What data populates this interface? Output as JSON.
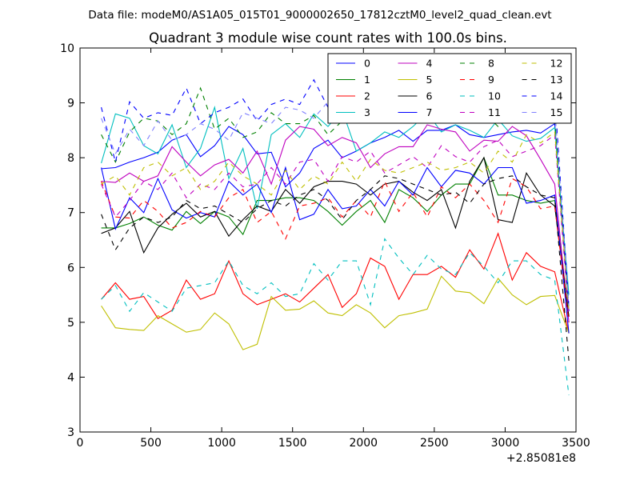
{
  "figure": {
    "suptitle": "Data file: modeM0/AS1A05_015T01_9000002650_17812cztM0_level2_quad_clean.evt"
  },
  "chart_data": {
    "type": "line",
    "title": "Quadrant 3 module wise count rates with 100.0s bins.",
    "xlabel": "",
    "ylabel": "",
    "x_offset_label": "+2.85081e8",
    "xlim": [
      0,
      3500
    ],
    "ylim": [
      3,
      10
    ],
    "xticks": [
      "0",
      "500",
      "1000",
      "1500",
      "2000",
      "2500",
      "3000",
      "3500"
    ],
    "yticks": [
      "3",
      "4",
      "5",
      "6",
      "7",
      "8",
      "9",
      "10"
    ],
    "grid": false,
    "legend_position": "top-right",
    "legend_columns": 4,
    "x": [
      150,
      250,
      350,
      450,
      550,
      650,
      750,
      850,
      950,
      1050,
      1150,
      1250,
      1350,
      1450,
      1550,
      1650,
      1750,
      1850,
      1950,
      2050,
      2150,
      2250,
      2350,
      2450,
      2550,
      2650,
      2750,
      2850,
      2950,
      3050,
      3150,
      3250,
      3350,
      3450
    ],
    "series": [
      {
        "name": "0",
        "color": "#0000ff",
        "dash": "solid",
        "values": [
          7.8,
          7.82,
          7.92,
          8.0,
          8.1,
          8.32,
          8.42,
          8.02,
          8.22,
          8.57,
          8.42,
          8.07,
          8.1,
          7.47,
          7.72,
          8.17,
          8.32,
          8.0,
          8.12,
          8.27,
          8.37,
          8.5,
          8.3,
          8.5,
          8.5,
          8.6,
          8.42,
          8.37,
          8.42,
          8.47,
          8.5,
          8.45,
          8.62,
          5.2
        ]
      },
      {
        "name": "1",
        "color": "#008000",
        "dash": "solid",
        "values": [
          6.72,
          6.72,
          6.8,
          6.92,
          6.77,
          6.68,
          7.02,
          6.8,
          7.02,
          6.92,
          6.6,
          7.22,
          7.22,
          7.27,
          7.27,
          7.22,
          7.02,
          6.77,
          7.02,
          7.22,
          6.82,
          7.42,
          7.27,
          7.02,
          7.32,
          7.52,
          7.52,
          8.0,
          7.32,
          7.32,
          7.22,
          7.17,
          7.22,
          5.1
        ]
      },
      {
        "name": "2",
        "color": "#ff0000",
        "dash": "solid",
        "values": [
          5.42,
          5.72,
          5.42,
          5.47,
          5.07,
          5.22,
          5.77,
          5.42,
          5.52,
          6.12,
          5.52,
          5.32,
          5.42,
          5.52,
          5.37,
          5.62,
          5.87,
          5.27,
          5.52,
          6.17,
          6.02,
          5.42,
          5.87,
          5.87,
          6.02,
          5.82,
          6.32,
          5.97,
          6.62,
          5.77,
          6.27,
          6.02,
          5.92,
          4.8
        ]
      },
      {
        "name": "3",
        "color": "#00bfbf",
        "dash": "solid",
        "values": [
          7.9,
          8.8,
          8.72,
          8.22,
          8.07,
          8.6,
          7.82,
          8.17,
          8.92,
          7.62,
          8.17,
          7.07,
          8.42,
          8.62,
          8.37,
          8.8,
          8.57,
          8.87,
          8.12,
          8.27,
          8.47,
          8.37,
          8.57,
          8.82,
          8.47,
          8.6,
          8.5,
          8.37,
          8.7,
          8.4,
          8.3,
          8.35,
          8.55,
          5.5
        ]
      },
      {
        "name": "4",
        "color": "#bf00bf",
        "dash": "solid",
        "values": [
          7.57,
          7.55,
          7.72,
          7.57,
          7.67,
          8.2,
          7.92,
          7.67,
          7.87,
          7.97,
          7.72,
          8.12,
          7.52,
          8.32,
          8.57,
          8.52,
          8.22,
          8.37,
          8.27,
          7.82,
          8.07,
          8.2,
          8.2,
          8.6,
          8.52,
          8.47,
          8.12,
          8.32,
          8.3,
          8.57,
          8.4,
          7.97,
          7.52,
          5.0
        ]
      },
      {
        "name": "5",
        "color": "#bfbf00",
        "dash": "solid",
        "values": [
          5.3,
          4.9,
          4.87,
          4.85,
          5.12,
          4.97,
          4.82,
          4.87,
          5.17,
          4.97,
          4.5,
          4.6,
          5.47,
          5.22,
          5.24,
          5.39,
          5.17,
          5.12,
          5.32,
          5.17,
          4.9,
          5.12,
          5.17,
          5.24,
          5.84,
          5.57,
          5.54,
          5.34,
          5.8,
          5.5,
          5.32,
          5.47,
          5.49,
          4.8
        ]
      },
      {
        "name": "6",
        "color": "#000000",
        "dash": "solid",
        "values": [
          6.62,
          6.72,
          7.02,
          6.27,
          6.72,
          6.97,
          7.17,
          6.92,
          7.02,
          6.57,
          6.87,
          7.12,
          7.02,
          7.42,
          7.17,
          7.47,
          7.57,
          7.57,
          7.52,
          7.32,
          7.52,
          7.57,
          7.37,
          7.22,
          7.42,
          6.72,
          7.57,
          8.0,
          6.87,
          6.82,
          7.72,
          7.32,
          7.12,
          5.1
        ]
      },
      {
        "name": "7",
        "color": "#0000ff",
        "dash": "solid",
        "values": [
          7.82,
          6.7,
          7.27,
          7.0,
          7.62,
          7.05,
          6.9,
          7.0,
          6.92,
          7.57,
          7.32,
          7.52,
          7.0,
          7.82,
          6.87,
          6.97,
          7.42,
          7.07,
          7.12,
          7.42,
          7.12,
          7.57,
          7.32,
          7.82,
          7.47,
          7.77,
          7.72,
          7.52,
          7.82,
          7.82,
          7.17,
          7.22,
          7.32,
          4.8
        ]
      },
      {
        "name": "8",
        "color": "#008000",
        "dash": "dashed",
        "values": [
          8.42,
          7.92,
          8.47,
          8.72,
          8.67,
          8.42,
          8.62,
          9.27,
          8.52,
          8.72,
          8.37,
          8.47,
          8.82,
          8.62,
          8.62,
          8.77,
          8.42,
          8.67,
          8.82,
          8.87,
          8.77,
          8.92,
          8.87,
          8.77,
          8.82,
          8.92,
          8.82,
          8.82,
          8.57,
          8.77,
          9.42,
          8.82,
          8.77,
          5.2
        ]
      },
      {
        "name": "9",
        "color": "#ff0000",
        "dash": "dashed",
        "values": [
          7.57,
          6.92,
          6.9,
          7.22,
          7.02,
          6.72,
          6.82,
          7.02,
          6.92,
          7.27,
          7.42,
          6.82,
          7.02,
          6.52,
          7.12,
          7.17,
          7.27,
          6.92,
          7.22,
          6.92,
          7.57,
          7.02,
          7.37,
          6.92,
          7.47,
          7.27,
          7.52,
          7.22,
          6.82,
          7.62,
          7.47,
          7.07,
          7.12,
          5.0
        ]
      },
      {
        "name": "10",
        "color": "#00bfbf",
        "dash": "dashed",
        "values": [
          5.42,
          5.67,
          5.2,
          5.54,
          5.37,
          5.2,
          5.62,
          5.67,
          5.72,
          6.12,
          5.67,
          5.52,
          5.72,
          5.47,
          5.52,
          6.07,
          5.77,
          6.12,
          6.12,
          5.32,
          6.52,
          6.17,
          5.87,
          6.22,
          5.97,
          5.87,
          6.27,
          6.02,
          5.72,
          6.12,
          6.12,
          5.87,
          5.77,
          3.67
        ]
      },
      {
        "name": "11",
        "color": "#bf00bf",
        "dash": "dashed",
        "values": [
          7.52,
          6.92,
          7.22,
          7.57,
          7.42,
          7.72,
          7.27,
          7.52,
          7.42,
          7.72,
          7.47,
          7.52,
          7.82,
          7.52,
          7.92,
          7.97,
          7.57,
          8.02,
          7.92,
          8.12,
          7.72,
          7.87,
          8.02,
          7.82,
          8.22,
          8.02,
          7.92,
          8.2,
          8.32,
          8.02,
          8.12,
          8.22,
          8.42,
          5.1
        ]
      },
      {
        "name": "12",
        "color": "#bfbf00",
        "dash": "dashed",
        "values": [
          7.52,
          7.67,
          7.32,
          7.82,
          7.92,
          7.67,
          7.82,
          7.42,
          7.57,
          7.92,
          7.67,
          7.52,
          7.32,
          7.77,
          7.42,
          7.67,
          7.52,
          7.92,
          7.57,
          7.97,
          7.77,
          7.72,
          7.82,
          7.92,
          7.77,
          7.82,
          7.92,
          7.72,
          8.12,
          7.92,
          8.42,
          8.27,
          8.47,
          5.2
        ]
      },
      {
        "name": "13",
        "color": "#000000",
        "dash": "dashed",
        "values": [
          6.97,
          6.32,
          6.72,
          6.92,
          6.82,
          6.92,
          7.22,
          7.07,
          7.12,
          6.97,
          6.82,
          7.07,
          7.22,
          7.12,
          7.32,
          7.42,
          7.22,
          6.87,
          7.22,
          7.42,
          7.67,
          7.62,
          7.52,
          7.42,
          7.32,
          7.37,
          7.17,
          7.52,
          7.62,
          7.67,
          7.47,
          7.32,
          7.27,
          4.3
        ]
      },
      {
        "name": "14",
        "color": "#0000ff",
        "dash": "dashed",
        "values": [
          8.92,
          7.92,
          9.02,
          8.72,
          8.82,
          8.77,
          9.27,
          8.62,
          8.82,
          8.92,
          9.07,
          8.67,
          8.97,
          9.07,
          8.97,
          9.42,
          8.92,
          9.02,
          8.72,
          9.12,
          9.02,
          8.87,
          9.22,
          9.07,
          8.97,
          9.12,
          9.27,
          8.97,
          8.92,
          9.32,
          9.02,
          8.92,
          9.12,
          5.3
        ]
      },
      {
        "name": "15",
        "color": "#8080ff",
        "dash": "dashed",
        "values": [
          8.72,
          8.07,
          8.52,
          8.22,
          8.67,
          8.32,
          8.42,
          8.62,
          8.52,
          8.32,
          8.82,
          8.72,
          8.62,
          8.92,
          8.87,
          8.72,
          9.02,
          8.72,
          9.12,
          8.77,
          9.47,
          9.32,
          9.12,
          9.22,
          9.37,
          9.17,
          9.42,
          9.37,
          9.52,
          9.07,
          9.22,
          9.02,
          8.92,
          5.3
        ]
      }
    ]
  }
}
